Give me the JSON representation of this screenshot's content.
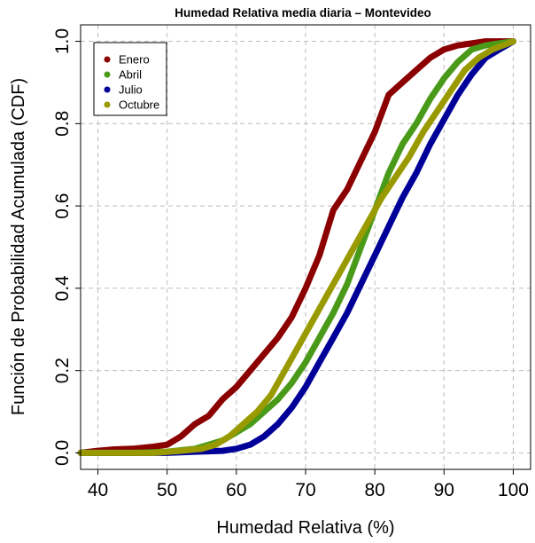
{
  "chart_data": {
    "type": "line",
    "title": "Humedad Relativa media diaria – Montevideo",
    "xlabel": "Humedad Relativa (%)",
    "ylabel": "Función de Probabilidad Acumulada (CDF)",
    "xlim": [
      37.5,
      102.5
    ],
    "ylim": [
      -0.04,
      1.04
    ],
    "xticks": [
      40,
      50,
      60,
      70,
      80,
      90,
      100
    ],
    "yticks": [
      0.0,
      0.2,
      0.4,
      0.6,
      0.8,
      1.0
    ],
    "xtick_labels": [
      "40",
      "50",
      "60",
      "70",
      "80",
      "90",
      "100"
    ],
    "ytick_labels": [
      "0.0",
      "0.2",
      "0.4",
      "0.6",
      "0.8",
      "1.0"
    ],
    "grid": true,
    "legend_position": "top-left",
    "series": [
      {
        "name": "Enero",
        "color": "#8b0000",
        "points": [
          [
            37.5,
            0.0
          ],
          [
            40,
            0.005
          ],
          [
            42,
            0.008
          ],
          [
            45,
            0.01
          ],
          [
            48,
            0.015
          ],
          [
            50,
            0.02
          ],
          [
            52,
            0.04
          ],
          [
            54,
            0.07
          ],
          [
            56,
            0.09
          ],
          [
            58,
            0.13
          ],
          [
            60,
            0.16
          ],
          [
            62,
            0.2
          ],
          [
            64,
            0.24
          ],
          [
            66,
            0.28
          ],
          [
            68,
            0.33
          ],
          [
            70,
            0.4
          ],
          [
            72,
            0.48
          ],
          [
            74,
            0.59
          ],
          [
            76,
            0.64
          ],
          [
            78,
            0.71
          ],
          [
            80,
            0.78
          ],
          [
            82,
            0.87
          ],
          [
            84,
            0.9
          ],
          [
            86,
            0.93
          ],
          [
            88,
            0.96
          ],
          [
            90,
            0.98
          ],
          [
            92,
            0.99
          ],
          [
            94,
            0.995
          ],
          [
            96,
            1.0
          ],
          [
            100,
            1.0
          ]
        ]
      },
      {
        "name": "Abril",
        "color": "#4a9a1a",
        "points": [
          [
            37.5,
            0.0
          ],
          [
            45,
            0.0
          ],
          [
            50,
            0.003
          ],
          [
            54,
            0.01
          ],
          [
            56,
            0.02
          ],
          [
            58,
            0.03
          ],
          [
            60,
            0.05
          ],
          [
            62,
            0.07
          ],
          [
            64,
            0.1
          ],
          [
            66,
            0.13
          ],
          [
            68,
            0.17
          ],
          [
            70,
            0.22
          ],
          [
            72,
            0.28
          ],
          [
            74,
            0.34
          ],
          [
            76,
            0.41
          ],
          [
            78,
            0.5
          ],
          [
            80,
            0.59
          ],
          [
            82,
            0.68
          ],
          [
            84,
            0.75
          ],
          [
            86,
            0.8
          ],
          [
            88,
            0.86
          ],
          [
            90,
            0.91
          ],
          [
            92,
            0.95
          ],
          [
            94,
            0.98
          ],
          [
            96,
            0.99
          ],
          [
            98,
            0.995
          ],
          [
            100,
            1.0
          ]
        ]
      },
      {
        "name": "Julio",
        "color": "#000099",
        "points": [
          [
            37.5,
            0.0
          ],
          [
            50,
            0.0
          ],
          [
            54,
            0.003
          ],
          [
            58,
            0.005
          ],
          [
            60,
            0.01
          ],
          [
            62,
            0.02
          ],
          [
            64,
            0.04
          ],
          [
            66,
            0.07
          ],
          [
            68,
            0.11
          ],
          [
            70,
            0.16
          ],
          [
            72,
            0.22
          ],
          [
            74,
            0.28
          ],
          [
            76,
            0.34
          ],
          [
            78,
            0.41
          ],
          [
            80,
            0.48
          ],
          [
            82,
            0.55
          ],
          [
            84,
            0.62
          ],
          [
            86,
            0.68
          ],
          [
            88,
            0.75
          ],
          [
            90,
            0.81
          ],
          [
            92,
            0.87
          ],
          [
            94,
            0.92
          ],
          [
            96,
            0.96
          ],
          [
            98,
            0.98
          ],
          [
            100,
            1.0
          ]
        ]
      },
      {
        "name": "Octubre",
        "color": "#999900",
        "points": [
          [
            37.5,
            0.0
          ],
          [
            48,
            0.0
          ],
          [
            52,
            0.005
          ],
          [
            55,
            0.01
          ],
          [
            57,
            0.02
          ],
          [
            59,
            0.04
          ],
          [
            61,
            0.07
          ],
          [
            63,
            0.1
          ],
          [
            65,
            0.14
          ],
          [
            67,
            0.2
          ],
          [
            69,
            0.26
          ],
          [
            71,
            0.32
          ],
          [
            73,
            0.38
          ],
          [
            75,
            0.44
          ],
          [
            77,
            0.5
          ],
          [
            79,
            0.56
          ],
          [
            81,
            0.62
          ],
          [
            83,
            0.67
          ],
          [
            85,
            0.72
          ],
          [
            87,
            0.78
          ],
          [
            89,
            0.83
          ],
          [
            91,
            0.88
          ],
          [
            93,
            0.93
          ],
          [
            95,
            0.96
          ],
          [
            97,
            0.98
          ],
          [
            100,
            1.0
          ]
        ]
      }
    ]
  }
}
